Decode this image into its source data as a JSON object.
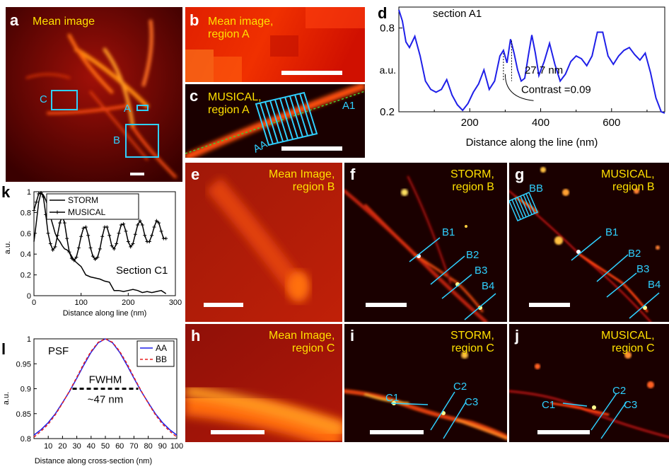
{
  "panel_labels": {
    "a": "a",
    "b": "b",
    "c": "c",
    "d": "d",
    "e": "e",
    "f": "f",
    "g": "g",
    "h": "h",
    "i": "i",
    "j": "j",
    "k": "k",
    "l": "l"
  },
  "panel_a": {
    "title": "Mean image",
    "roi_labels": [
      "C",
      "A",
      "B"
    ]
  },
  "panel_b": {
    "title": "Mean image,\nregion A"
  },
  "panel_c": {
    "title": "MUSICAL,\nregion A",
    "line_label_start": "AA",
    "line_label_end": "A1"
  },
  "panel_e": {
    "title": "Mean Image,\nregion B"
  },
  "panel_f": {
    "title": "STORM,\nregion B",
    "line_labels": [
      "B1",
      "B2",
      "B3",
      "B4"
    ]
  },
  "panel_g": {
    "title": "MUSICAL,\nregion B",
    "roi_label": "BB",
    "line_labels": [
      "B1",
      "B2",
      "B3",
      "B4"
    ]
  },
  "panel_h": {
    "title": "Mean Image,\nregion C"
  },
  "panel_i": {
    "title": "STORM,\nregion C",
    "line_labels": [
      "C1",
      "C2",
      "C3"
    ]
  },
  "panel_j": {
    "title": "MUSICAL,\nregion C",
    "line_labels": [
      "C1",
      "C2",
      "C3"
    ]
  },
  "colors": {
    "blue_line": "#1f1fe8",
    "red_dashed": "#e82020",
    "cyan": "#2fd0ff",
    "yellow": "#ffe000"
  },
  "chart_data": [
    {
      "id": "d",
      "type": "line",
      "title": "section A1",
      "xlabel": "Distance along the line (nm)",
      "ylabel": "a.u.",
      "xlim": [
        0,
        750
      ],
      "ylim": [
        0.2,
        0.95
      ],
      "xticks": [
        200,
        400,
        600
      ],
      "yticks": [
        0.2,
        0.8
      ],
      "annotation_text": [
        "27.7 nm",
        "Contrast =0.09"
      ],
      "series": [
        {
          "x": [
            0,
            10,
            20,
            30,
            45,
            60,
            75,
            90,
            105,
            120,
            135,
            150,
            165,
            180,
            195,
            210,
            225,
            240,
            255,
            270,
            285,
            295,
            305,
            315,
            325,
            335,
            345,
            355,
            365,
            375,
            385,
            395,
            410,
            425,
            440,
            455,
            470,
            485,
            500,
            515,
            530,
            545,
            560,
            575,
            590,
            605,
            620,
            635,
            650,
            665,
            680,
            695,
            710,
            725,
            740,
            750
          ],
          "y": [
            0.93,
            0.85,
            0.7,
            0.66,
            0.74,
            0.6,
            0.42,
            0.36,
            0.34,
            0.36,
            0.43,
            0.32,
            0.25,
            0.21,
            0.26,
            0.34,
            0.4,
            0.5,
            0.36,
            0.42,
            0.6,
            0.64,
            0.55,
            0.72,
            0.62,
            0.5,
            0.42,
            0.44,
            0.6,
            0.75,
            0.62,
            0.46,
            0.56,
            0.69,
            0.54,
            0.42,
            0.47,
            0.56,
            0.6,
            0.58,
            0.53,
            0.6,
            0.77,
            0.77,
            0.6,
            0.54,
            0.6,
            0.64,
            0.66,
            0.61,
            0.57,
            0.62,
            0.48,
            0.3,
            0.2,
            0.19
          ]
        }
      ]
    },
    {
      "id": "k",
      "type": "line",
      "title": "Section C1",
      "xlabel": "Distance along line (nm)",
      "ylabel": "a.u.",
      "xlim": [
        0,
        300
      ],
      "ylim": [
        0,
        1
      ],
      "xticks": [
        0,
        100,
        200,
        300
      ],
      "yticks": [
        0,
        0.2,
        0.4,
        0.6,
        0.8,
        1
      ],
      "legend_position": "top-left",
      "series": [
        {
          "name": "STORM",
          "x": [
            0,
            5,
            10,
            15,
            20,
            25,
            30,
            35,
            40,
            45,
            50,
            55,
            60,
            65,
            70,
            75,
            80,
            85,
            90,
            95,
            100,
            110,
            120,
            130,
            140,
            150,
            160,
            170,
            180,
            190,
            200,
            210,
            220,
            230,
            240,
            250,
            260,
            270,
            280
          ],
          "y": [
            0.52,
            0.7,
            0.9,
            0.99,
            0.97,
            0.92,
            0.85,
            0.76,
            0.68,
            0.6,
            0.55,
            0.52,
            0.48,
            0.45,
            0.44,
            0.42,
            0.38,
            0.34,
            0.32,
            0.3,
            0.28,
            0.2,
            0.18,
            0.17,
            0.16,
            0.14,
            0.13,
            0.05,
            0.05,
            0.04,
            0.05,
            0.06,
            0.05,
            0.03,
            0.04,
            0.03,
            0.04,
            0.05,
            0.02
          ]
        },
        {
          "name": "MUSICAL",
          "x": [
            0,
            5,
            10,
            15,
            20,
            25,
            30,
            35,
            40,
            45,
            50,
            55,
            60,
            65,
            70,
            75,
            80,
            85,
            90,
            95,
            100,
            105,
            110,
            115,
            120,
            125,
            130,
            135,
            140,
            145,
            150,
            155,
            160,
            165,
            170,
            175,
            180,
            185,
            190,
            195,
            200,
            205,
            210,
            215,
            220,
            225,
            230,
            235,
            240,
            245,
            250,
            255,
            260,
            265,
            270,
            275,
            280
          ],
          "y": [
            0.82,
            0.9,
            0.98,
            0.99,
            0.95,
            0.78,
            0.6,
            0.5,
            0.44,
            0.47,
            0.58,
            0.7,
            0.77,
            0.7,
            0.55,
            0.42,
            0.36,
            0.34,
            0.37,
            0.46,
            0.57,
            0.65,
            0.66,
            0.58,
            0.46,
            0.38,
            0.35,
            0.37,
            0.45,
            0.57,
            0.66,
            0.66,
            0.58,
            0.48,
            0.45,
            0.5,
            0.6,
            0.68,
            0.69,
            0.62,
            0.52,
            0.47,
            0.5,
            0.59,
            0.68,
            0.72,
            0.68,
            0.58,
            0.52,
            0.52,
            0.58,
            0.66,
            0.72,
            0.7,
            0.62,
            0.55,
            0.55
          ]
        }
      ]
    },
    {
      "id": "l",
      "type": "line",
      "title": "PSF",
      "xlabel": "Distance along cross-section (nm)",
      "ylabel": "a.u.",
      "xlim": [
        0,
        100
      ],
      "ylim": [
        0.8,
        1
      ],
      "xticks": [
        10,
        20,
        30,
        40,
        50,
        60,
        70,
        80,
        90,
        100
      ],
      "yticks": [
        0.8,
        0.85,
        0.9,
        0.95,
        1
      ],
      "legend_position": "top-right",
      "annotation_text": [
        "FWHM",
        "~47 nm"
      ],
      "series": [
        {
          "name": "AA",
          "x": [
            0,
            5,
            10,
            15,
            20,
            25,
            30,
            35,
            40,
            45,
            50,
            55,
            60,
            65,
            70,
            75,
            80,
            85,
            90,
            95,
            100
          ],
          "y": [
            0.807,
            0.818,
            0.832,
            0.85,
            0.872,
            0.895,
            0.921,
            0.948,
            0.973,
            0.992,
            1.0,
            0.992,
            0.973,
            0.948,
            0.921,
            0.895,
            0.872,
            0.85,
            0.832,
            0.818,
            0.807
          ]
        },
        {
          "name": "BB",
          "x": [
            0,
            5,
            10,
            15,
            20,
            25,
            30,
            35,
            40,
            45,
            50,
            55,
            60,
            65,
            70,
            75,
            80,
            85,
            90,
            95,
            100
          ],
          "y": [
            0.803,
            0.815,
            0.829,
            0.848,
            0.871,
            0.896,
            0.923,
            0.951,
            0.975,
            0.993,
            1.0,
            0.993,
            0.975,
            0.951,
            0.923,
            0.896,
            0.871,
            0.848,
            0.829,
            0.815,
            0.803
          ]
        }
      ]
    }
  ]
}
